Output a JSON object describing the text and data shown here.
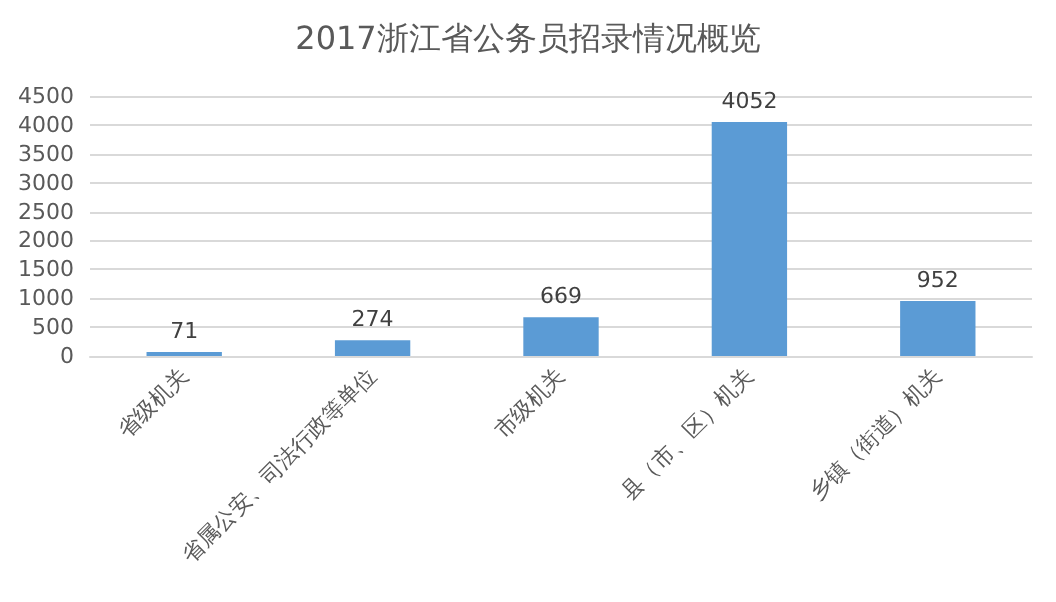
{
  "chart_data": {
    "type": "bar",
    "title": "2017浙江省公务员招录情况概览",
    "categories": [
      "省级机关",
      "省属公安、司法行政等单位",
      "市级机关",
      "县（市、区）机关",
      "乡镇（街道）机关"
    ],
    "values": [
      71,
      274,
      669,
      4052,
      952
    ],
    "color": "#5b9bd5",
    "ylim": [
      0,
      4500
    ],
    "yticks": [
      0,
      500,
      1000,
      1500,
      2000,
      2500,
      3000,
      3500,
      4000,
      4500
    ],
    "grid": "y",
    "data_labels": true
  }
}
